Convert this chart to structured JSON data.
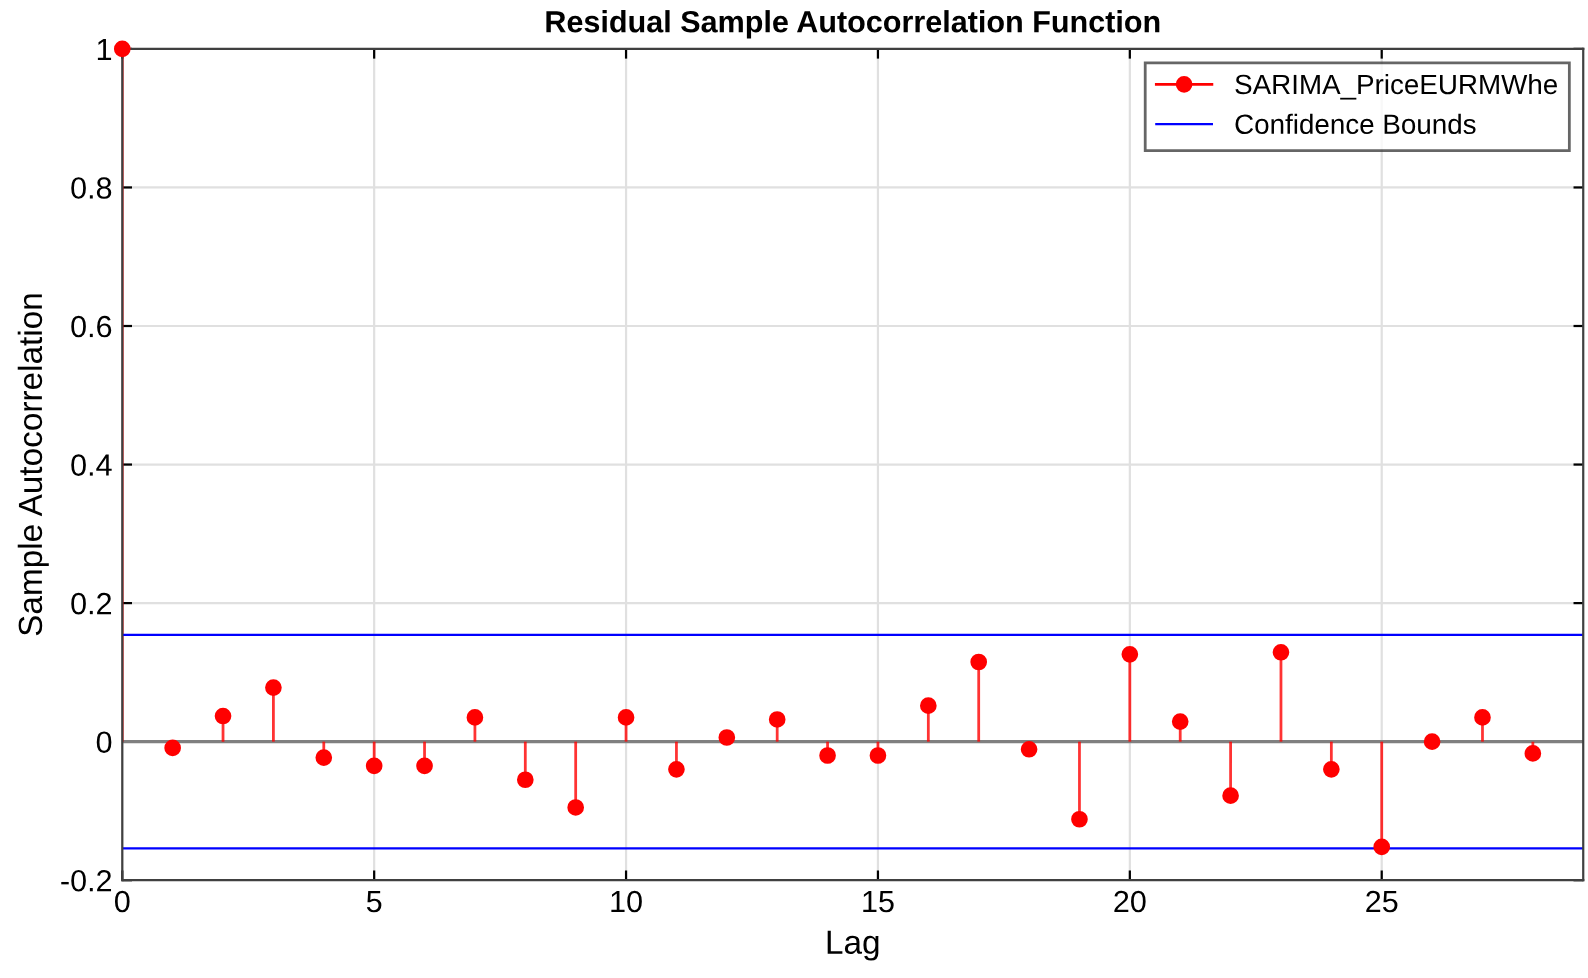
{
  "chart_data": {
    "type": "lollipop",
    "title": "Residual Sample Autocorrelation Function",
    "xlabel": "Lag",
    "ylabel": "Sample Autocorrelation",
    "x": [
      0,
      1,
      2,
      3,
      4,
      5,
      6,
      7,
      8,
      9,
      10,
      11,
      12,
      13,
      14,
      15,
      16,
      17,
      18,
      19,
      20,
      21,
      22,
      23,
      24,
      25,
      26,
      27,
      28
    ],
    "series": [
      {
        "name": "SARIMA_PriceEURMWhe",
        "color": "#ff0000",
        "values": [
          1,
          -0.009,
          0.037,
          0.078,
          -0.023,
          -0.035,
          -0.035,
          0.035,
          -0.055,
          -0.095,
          0.035,
          -0.04,
          0.006,
          0.032,
          -0.02,
          -0.02,
          0.052,
          0.115,
          -0.011,
          -0.112,
          0.126,
          0.029,
          -0.078,
          0.129,
          -0.04,
          -0.152,
          0,
          0.035,
          -0.017
        ]
      }
    ],
    "ref_lines": [
      {
        "axis": "y",
        "value": 0.154,
        "label": "Confidence Bounds",
        "color": "#0000ff"
      },
      {
        "axis": "y",
        "value": -0.154,
        "color": "#0000ff"
      }
    ],
    "xlim": [
      0,
      29
    ],
    "ylim": [
      -0.2,
      1
    ],
    "xticks": [
      0,
      5,
      10,
      15,
      20,
      25
    ],
    "yticks": [
      -0.2,
      0,
      0.2,
      0.4,
      0.6,
      0.8,
      1
    ],
    "grid": true,
    "legend": "top right",
    "marker": "circle"
  }
}
